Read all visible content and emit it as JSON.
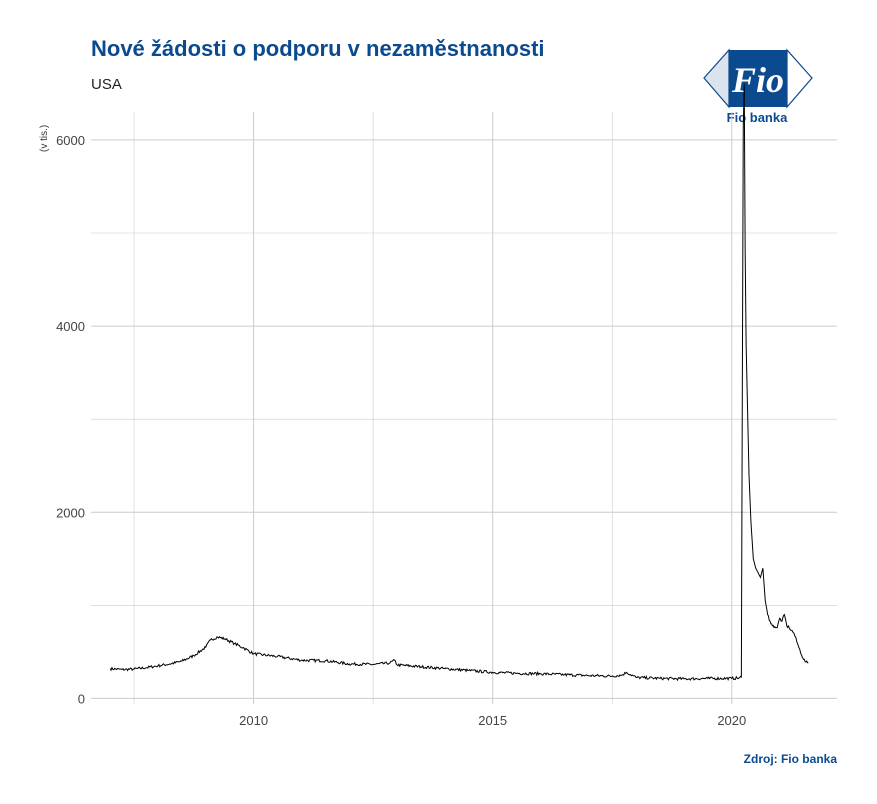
{
  "title": "Nové žádosti o podporu v nezaměstnanosti",
  "subtitle": "USA",
  "source": "Zdroj: Fio banka",
  "logo": {
    "mark": "Fio",
    "name": "Fio banka",
    "color": "#0b4a8f"
  },
  "colors": {
    "line": "#000000",
    "grid": "#cccccc",
    "brand": "#0b4a8f"
  },
  "chart_data": {
    "type": "line",
    "title": "Nové žádosti o podporu v nezaměstnanosti",
    "subtitle": "USA",
    "ylabel": "(v tis.)",
    "xlabel": "",
    "xlim": [
      2006.6,
      2022.2
    ],
    "ylim": [
      -60,
      6300
    ],
    "x_ticks": [
      2010,
      2015,
      2020
    ],
    "x_tick_labels": [
      "2010",
      "2015",
      "2020"
    ],
    "y_ticks": [
      0,
      2000,
      4000,
      6000
    ],
    "y_tick_labels": [
      "0",
      "2000",
      "4000",
      "6000"
    ],
    "grid": true,
    "series": [
      {
        "x": [
          2007.0,
          2007.25,
          2007.5,
          2007.75,
          2008.0,
          2008.25,
          2008.5,
          2008.75,
          2009.0,
          2009.1,
          2009.25,
          2009.4,
          2009.6,
          2009.8,
          2010.0,
          2010.5,
          2011.0,
          2011.5,
          2012.0,
          2012.5,
          2012.85,
          2012.95,
          2013.0,
          2013.5,
          2014.0,
          2014.5,
          2015.0,
          2015.5,
          2016.0,
          2016.5,
          2017.0,
          2017.5,
          2017.7,
          2017.8,
          2018.0,
          2018.5,
          2019.0,
          2019.5,
          2020.0,
          2020.15,
          2020.2,
          2020.22,
          2020.24,
          2020.26,
          2020.28,
          2020.3,
          2020.33,
          2020.36,
          2020.4,
          2020.45,
          2020.5,
          2020.55,
          2020.6,
          2020.65,
          2020.7,
          2020.75,
          2020.8,
          2020.85,
          2020.9,
          2020.95,
          2021.0,
          2021.05,
          2021.1,
          2021.15,
          2021.2,
          2021.3,
          2021.4,
          2021.5,
          2021.55,
          2021.6
        ],
        "y": [
          320,
          310,
          315,
          330,
          350,
          370,
          400,
          460,
          550,
          630,
          660,
          640,
          590,
          540,
          480,
          450,
          410,
          405,
          370,
          365,
          380,
          410,
          360,
          340,
          320,
          300,
          280,
          270,
          265,
          255,
          245,
          240,
          250,
          280,
          225,
          215,
          210,
          215,
          215,
          220,
          230,
          3300,
          6150,
          6600,
          4800,
          3800,
          3100,
          2400,
          1900,
          1500,
          1400,
          1350,
          1300,
          1400,
          1050,
          900,
          830,
          780,
          770,
          760,
          860,
          830,
          900,
          780,
          760,
          700,
          550,
          420,
          390,
          380
        ]
      }
    ]
  }
}
